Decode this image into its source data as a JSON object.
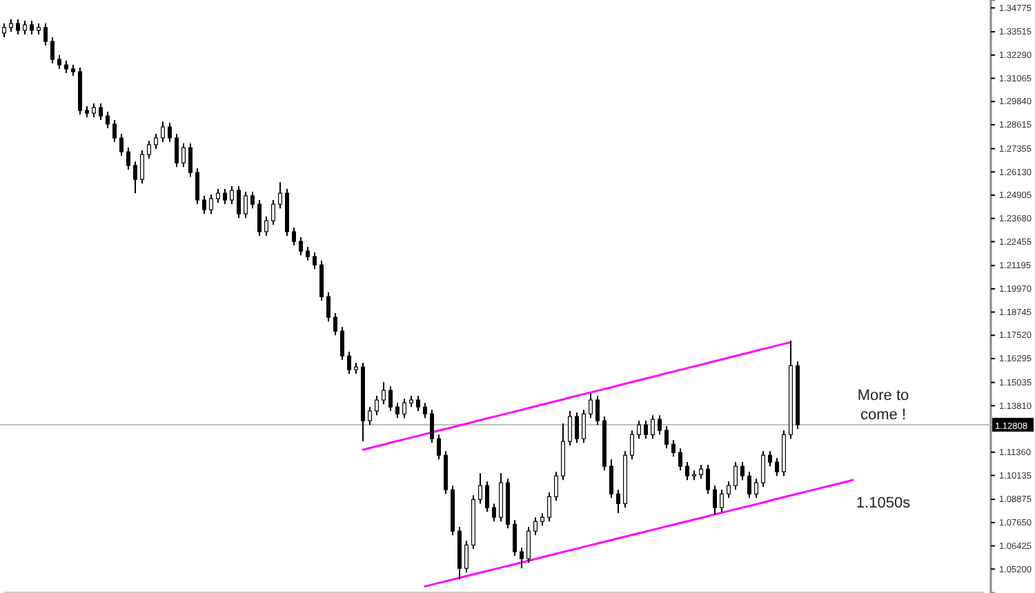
{
  "chart_data": {
    "type": "candlestick",
    "categories": [
      null,
      null,
      null,
      null,
      null,
      null,
      null,
      null,
      null,
      null,
      null,
      null,
      null,
      null,
      null,
      null,
      null,
      null,
      null,
      null,
      null,
      null,
      null,
      null,
      null,
      null,
      null,
      null,
      null,
      null,
      null,
      null,
      null,
      null,
      null,
      null,
      null,
      null,
      null,
      null,
      null,
      null,
      null,
      null,
      null,
      null,
      null,
      null,
      null,
      null,
      null,
      null,
      null,
      null,
      null,
      null,
      null,
      null,
      null,
      null,
      null,
      null,
      null,
      null,
      null,
      null,
      null,
      null,
      null,
      null,
      null,
      null,
      null,
      null,
      null,
      null,
      null,
      null,
      null,
      null,
      null,
      null,
      null,
      null,
      null,
      null,
      null,
      null,
      null,
      null,
      null,
      null,
      null,
      null,
      null,
      null,
      null,
      null,
      null,
      null,
      null,
      null,
      null,
      null,
      null,
      null,
      null,
      null,
      null,
      null,
      null,
      null,
      null,
      null,
      null,
      null,
      null,
      null,
      null,
      null,
      null,
      null,
      null,
      null,
      null,
      null,
      null,
      null,
      null,
      null,
      null,
      null,
      null,
      null,
      null,
      null,
      null,
      null,
      null,
      null,
      null,
      null,
      null
    ],
    "ylim": [
      1.0394,
      1.3519
    ],
    "tick_labels": "y",
    "yticks": [
      {
        "value": 1.34775,
        "label": "1.34775"
      },
      {
        "value": 1.33515,
        "label": "1.33515"
      },
      {
        "value": 1.3229,
        "label": "1.32290"
      },
      {
        "value": 1.31065,
        "label": "1.31065"
      },
      {
        "value": 1.2984,
        "label": "1.29840"
      },
      {
        "value": 1.28615,
        "label": "1.28615"
      },
      {
        "value": 1.27355,
        "label": "1.27355"
      },
      {
        "value": 1.2613,
        "label": "1.26130"
      },
      {
        "value": 1.24905,
        "label": "1.24905"
      },
      {
        "value": 1.2368,
        "label": "1.23680"
      },
      {
        "value": 1.22455,
        "label": "1.22455"
      },
      {
        "value": 1.21195,
        "label": "1.21195"
      },
      {
        "value": 1.1997,
        "label": "1.19970"
      },
      {
        "value": 1.18745,
        "label": "1.18745"
      },
      {
        "value": 1.1752,
        "label": "1.17520"
      },
      {
        "value": 1.16295,
        "label": "1.16295"
      },
      {
        "value": 1.15035,
        "label": "1.15035"
      },
      {
        "value": 1.1381,
        "label": "1.13810"
      },
      {
        "value": 1.1136,
        "label": "1.11360"
      },
      {
        "value": 1.10135,
        "label": "1.10135"
      },
      {
        "value": 1.08875,
        "label": "1.08875"
      },
      {
        "value": 1.0765,
        "label": "1.07650"
      },
      {
        "value": 1.06425,
        "label": "1.06425"
      },
      {
        "value": 1.052,
        "label": "1.05200"
      }
    ],
    "ref_lines": [
      {
        "axis": "y",
        "value": 1.12808,
        "label": "1.12808",
        "color": "#c0c0c0"
      }
    ],
    "annotations": [
      "More to come !",
      "1.1050s"
    ],
    "series": [
      {
        "color": "#000000",
        "ohlc": [
          [
            1.3345,
            1.3395,
            1.3323,
            1.3374
          ],
          [
            1.3374,
            1.3417,
            1.3352,
            1.3395
          ],
          [
            1.3395,
            1.3417,
            1.3337,
            1.3359
          ],
          [
            1.3359,
            1.341,
            1.3337,
            1.3388
          ],
          [
            1.3388,
            1.341,
            1.3337,
            1.3359
          ],
          [
            1.3359,
            1.3395,
            1.3337,
            1.3374
          ],
          [
            1.3374,
            1.3395,
            1.3279,
            1.3301
          ],
          [
            1.3301,
            1.3323,
            1.3185,
            1.3206
          ],
          [
            1.3206,
            1.3228,
            1.3156,
            1.3177
          ],
          [
            1.3177,
            1.3199,
            1.3134,
            1.3156
          ],
          [
            1.3156,
            1.3177,
            1.3119,
            1.3141
          ],
          [
            1.3141,
            1.3163,
            1.2916,
            1.2937
          ],
          [
            1.2937,
            1.2959,
            1.2901,
            1.2923
          ],
          [
            1.2923,
            1.2974,
            1.2901,
            1.2952
          ],
          [
            1.2952,
            1.2974,
            1.2887,
            1.2908
          ],
          [
            1.2908,
            1.293,
            1.2843,
            1.2865
          ],
          [
            1.2865,
            1.2887,
            1.277,
            1.2792
          ],
          [
            1.2792,
            1.2814,
            1.2698,
            1.2719
          ],
          [
            1.2719,
            1.2741,
            1.2625,
            1.2647
          ],
          [
            1.2647,
            1.2668,
            1.2501,
            1.2574
          ],
          [
            1.2574,
            1.2727,
            1.2552,
            1.2705
          ],
          [
            1.2705,
            1.2777,
            1.2683,
            1.2756
          ],
          [
            1.2756,
            1.2814,
            1.2734,
            1.2792
          ],
          [
            1.2792,
            1.2879,
            1.277,
            1.285
          ],
          [
            1.285,
            1.2872,
            1.277,
            1.2792
          ],
          [
            1.2792,
            1.2814,
            1.2639,
            1.2661
          ],
          [
            1.2661,
            1.2763,
            1.2639,
            1.2741
          ],
          [
            1.2741,
            1.2763,
            1.2588,
            1.261
          ],
          [
            1.261,
            1.2632,
            1.2443,
            1.2465
          ],
          [
            1.2465,
            1.2487,
            1.2392,
            1.2414
          ],
          [
            1.2414,
            1.2494,
            1.2392,
            1.2472
          ],
          [
            1.2472,
            1.2523,
            1.245,
            1.2501
          ],
          [
            1.2501,
            1.2523,
            1.2443,
            1.2465
          ],
          [
            1.2465,
            1.2538,
            1.2443,
            1.2516
          ],
          [
            1.2516,
            1.2538,
            1.237,
            1.2392
          ],
          [
            1.2392,
            1.2509,
            1.237,
            1.2487
          ],
          [
            1.2487,
            1.2509,
            1.2421,
            1.2443
          ],
          [
            1.2443,
            1.2465,
            1.2276,
            1.2298
          ],
          [
            1.2298,
            1.2378,
            1.2276,
            1.2356
          ],
          [
            1.2356,
            1.2465,
            1.2334,
            1.2443
          ],
          [
            1.2443,
            1.2559,
            1.2421,
            1.2501
          ],
          [
            1.2501,
            1.2523,
            1.2276,
            1.2298
          ],
          [
            1.2298,
            1.2319,
            1.2225,
            1.2247
          ],
          [
            1.2247,
            1.2269,
            1.2174,
            1.2196
          ],
          [
            1.2196,
            1.2218,
            1.2145,
            1.2167
          ],
          [
            1.2167,
            1.2189,
            1.2101,
            1.2123
          ],
          [
            1.2123,
            1.2145,
            1.1934,
            1.1956
          ],
          [
            1.1956,
            1.1978,
            1.1825,
            1.1847
          ],
          [
            1.1847,
            1.1869,
            1.1752,
            1.1774
          ],
          [
            1.1774,
            1.1796,
            1.1622,
            1.1643
          ],
          [
            1.1643,
            1.1665,
            1.1549,
            1.1571
          ],
          [
            1.1571,
            1.1607,
            1.1549,
            1.1585
          ],
          [
            1.1585,
            1.1607,
            1.1193,
            1.1302
          ],
          [
            1.1302,
            1.1374,
            1.128,
            1.1353
          ],
          [
            1.1353,
            1.1433,
            1.1331,
            1.1411
          ],
          [
            1.1411,
            1.1505,
            1.1389,
            1.1462
          ],
          [
            1.1462,
            1.1483,
            1.1353,
            1.1374
          ],
          [
            1.1374,
            1.1396,
            1.1316,
            1.1338
          ],
          [
            1.1338,
            1.1418,
            1.1316,
            1.1396
          ],
          [
            1.1396,
            1.1433,
            1.1374,
            1.1411
          ],
          [
            1.1411,
            1.1433,
            1.1353,
            1.1374
          ],
          [
            1.1374,
            1.1396,
            1.1316,
            1.1338
          ],
          [
            1.1338,
            1.136,
            1.1185,
            1.1207
          ],
          [
            1.1207,
            1.1229,
            1.1098,
            1.112
          ],
          [
            1.112,
            1.1142,
            1.0916,
            1.0938
          ],
          [
            1.0938,
            1.096,
            1.0698,
            1.072
          ],
          [
            1.072,
            1.0742,
            1.0466,
            1.0524
          ],
          [
            1.0524,
            1.0669,
            1.0502,
            1.0647
          ],
          [
            1.0647,
            1.0909,
            1.0626,
            1.0887
          ],
          [
            1.0887,
            1.1025,
            1.0865,
            1.096
          ],
          [
            1.096,
            1.0982,
            1.0822,
            1.0844
          ],
          [
            1.0844,
            1.0865,
            1.0771,
            1.0793
          ],
          [
            1.0793,
            1.1025,
            1.0771,
            1.0975
          ],
          [
            1.0975,
            1.0996,
            1.0735,
            1.0756
          ],
          [
            1.0756,
            1.0778,
            1.0589,
            1.0611
          ],
          [
            1.0611,
            1.0633,
            1.0524,
            1.0575
          ],
          [
            1.0575,
            1.0742,
            1.0553,
            1.072
          ],
          [
            1.072,
            1.0793,
            1.0698,
            1.0771
          ],
          [
            1.0771,
            1.0815,
            1.0749,
            1.0793
          ],
          [
            1.0793,
            1.0924,
            1.0771,
            1.0902
          ],
          [
            1.0902,
            1.1033,
            1.088,
            1.1011
          ],
          [
            1.1011,
            1.1287,
            1.0989,
            1.1193
          ],
          [
            1.1193,
            1.1353,
            1.1171,
            1.1324
          ],
          [
            1.1324,
            1.1345,
            1.1185,
            1.1207
          ],
          [
            1.1207,
            1.136,
            1.1185,
            1.1338
          ],
          [
            1.1338,
            1.1447,
            1.1316,
            1.1411
          ],
          [
            1.1411,
            1.1433,
            1.128,
            1.1302
          ],
          [
            1.1302,
            1.1324,
            1.104,
            1.1062
          ],
          [
            1.1062,
            1.1098,
            1.0895,
            1.0916
          ],
          [
            1.0916,
            1.0938,
            1.0815,
            1.0865
          ],
          [
            1.0865,
            1.1142,
            1.0844,
            1.112
          ],
          [
            1.112,
            1.1251,
            1.1098,
            1.1229
          ],
          [
            1.1229,
            1.1302,
            1.1207,
            1.128
          ],
          [
            1.128,
            1.1302,
            1.1207,
            1.1229
          ],
          [
            1.1229,
            1.1331,
            1.1207,
            1.1309
          ],
          [
            1.1309,
            1.1331,
            1.1229,
            1.1251
          ],
          [
            1.1251,
            1.1273,
            1.1156,
            1.1178
          ],
          [
            1.1178,
            1.12,
            1.1113,
            1.1134
          ],
          [
            1.1134,
            1.1156,
            1.104,
            1.1062
          ],
          [
            1.1062,
            1.1084,
            1.0989,
            1.1011
          ],
          [
            1.1011,
            1.104,
            1.0989,
            1.1018
          ],
          [
            1.1018,
            1.1069,
            1.0996,
            1.1047
          ],
          [
            1.1047,
            1.1069,
            1.0916,
            1.0938
          ],
          [
            1.0938,
            1.096,
            1.0807,
            1.0844
          ],
          [
            1.0844,
            1.0938,
            1.0822,
            1.0916
          ],
          [
            1.0916,
            1.0982,
            1.0895,
            1.096
          ],
          [
            1.096,
            1.1084,
            1.0938,
            1.1062
          ],
          [
            1.1062,
            1.1084,
            1.0989,
            1.1011
          ],
          [
            1.1011,
            1.1033,
            1.0895,
            1.0916
          ],
          [
            1.0916,
            1.0996,
            1.0895,
            1.0975
          ],
          [
            1.0975,
            1.1142,
            1.0953,
            1.112
          ],
          [
            1.112,
            1.1142,
            1.1062,
            1.1084
          ],
          [
            1.1084,
            1.1105,
            1.1011,
            1.1033
          ],
          [
            1.1033,
            1.1251,
            1.1011,
            1.1229
          ],
          [
            1.1229,
            1.1723,
            1.1207,
            1.1592
          ],
          [
            1.1592,
            1.1614,
            1.1258,
            1.1281
          ],
          null,
          null,
          null,
          null,
          null,
          null,
          null,
          null,
          null,
          null,
          null,
          null,
          null,
          null,
          null,
          null,
          null,
          null,
          null,
          null,
          null,
          null,
          null,
          null,
          null,
          null,
          null
        ]
      },
      {
        "type": "line",
        "color": "#ff00ff",
        "values": [
          null,
          null,
          null,
          null,
          null,
          null,
          null,
          null,
          null,
          null,
          null,
          null,
          null,
          null,
          null,
          null,
          null,
          null,
          null,
          null,
          null,
          null,
          null,
          null,
          null,
          null,
          null,
          null,
          null,
          null,
          null,
          null,
          null,
          null,
          null,
          null,
          null,
          null,
          null,
          null,
          null,
          null,
          null,
          null,
          null,
          null,
          null,
          null,
          null,
          null,
          null,
          null,
          1.1149,
          1.1158,
          1.1167,
          1.1176,
          1.1186,
          1.1195,
          1.1204,
          1.1213,
          1.1222,
          1.1231,
          1.1241,
          1.125,
          1.1259,
          1.1268,
          1.1277,
          1.1286,
          1.1295,
          1.1305,
          1.1314,
          1.1323,
          1.1332,
          1.1341,
          1.135,
          1.1359,
          1.1369,
          1.1378,
          1.1387,
          1.1396,
          1.1405,
          1.1414,
          1.1424,
          1.1433,
          1.1442,
          1.1451,
          1.146,
          1.1469,
          1.1478,
          1.1488,
          1.1497,
          1.1506,
          1.1515,
          1.1524,
          1.1533,
          1.1542,
          1.1552,
          1.1561,
          1.157,
          1.1579,
          1.1588,
          1.1597,
          1.1607,
          1.1616,
          1.1625,
          1.1634,
          1.1643,
          1.1652,
          1.1661,
          1.1671,
          1.168,
          1.1689,
          1.1698,
          1.1707,
          1.1716,
          null,
          null,
          null,
          null,
          null,
          null,
          null,
          null,
          null,
          null,
          null,
          null,
          null,
          null,
          null,
          null,
          null,
          null,
          null,
          null,
          null,
          null,
          null,
          null,
          null,
          null,
          null,
          null
        ]
      },
      {
        "type": "line",
        "color": "#ff00ff",
        "values": [
          null,
          null,
          null,
          null,
          null,
          null,
          null,
          null,
          null,
          null,
          null,
          null,
          null,
          null,
          null,
          null,
          null,
          null,
          null,
          null,
          null,
          null,
          null,
          null,
          null,
          null,
          null,
          null,
          null,
          null,
          null,
          null,
          null,
          null,
          null,
          null,
          null,
          null,
          null,
          null,
          null,
          null,
          null,
          null,
          null,
          null,
          null,
          null,
          null,
          null,
          null,
          null,
          null,
          null,
          null,
          null,
          null,
          null,
          null,
          null,
          null,
          1.0429,
          1.0438,
          1.0447,
          1.0456,
          1.0465,
          1.0474,
          1.0483,
          1.0492,
          1.0501,
          1.051,
          1.0519,
          1.0528,
          1.0537,
          1.0546,
          1.0555,
          1.0564,
          1.0573,
          1.0583,
          1.0592,
          1.0601,
          1.061,
          1.0619,
          1.0628,
          1.0637,
          1.0646,
          1.0655,
          1.0664,
          1.0673,
          1.0682,
          1.0691,
          1.07,
          1.0709,
          1.0718,
          1.0727,
          1.0736,
          1.0745,
          1.0754,
          1.0763,
          1.0772,
          1.0781,
          1.079,
          1.0799,
          1.0808,
          1.0817,
          1.0826,
          1.0835,
          1.0844,
          1.0853,
          1.0862,
          1.0871,
          1.0881,
          1.089,
          1.0899,
          1.0908,
          1.0917,
          1.0926,
          1.0935,
          1.0944,
          1.0953,
          1.0962,
          1.0971,
          1.098,
          1.0989,
          null,
          null,
          null,
          null,
          null,
          null,
          null,
          null,
          null,
          null,
          null,
          null,
          null,
          null,
          null,
          null,
          null,
          null,
          null
        ]
      }
    ]
  }
}
